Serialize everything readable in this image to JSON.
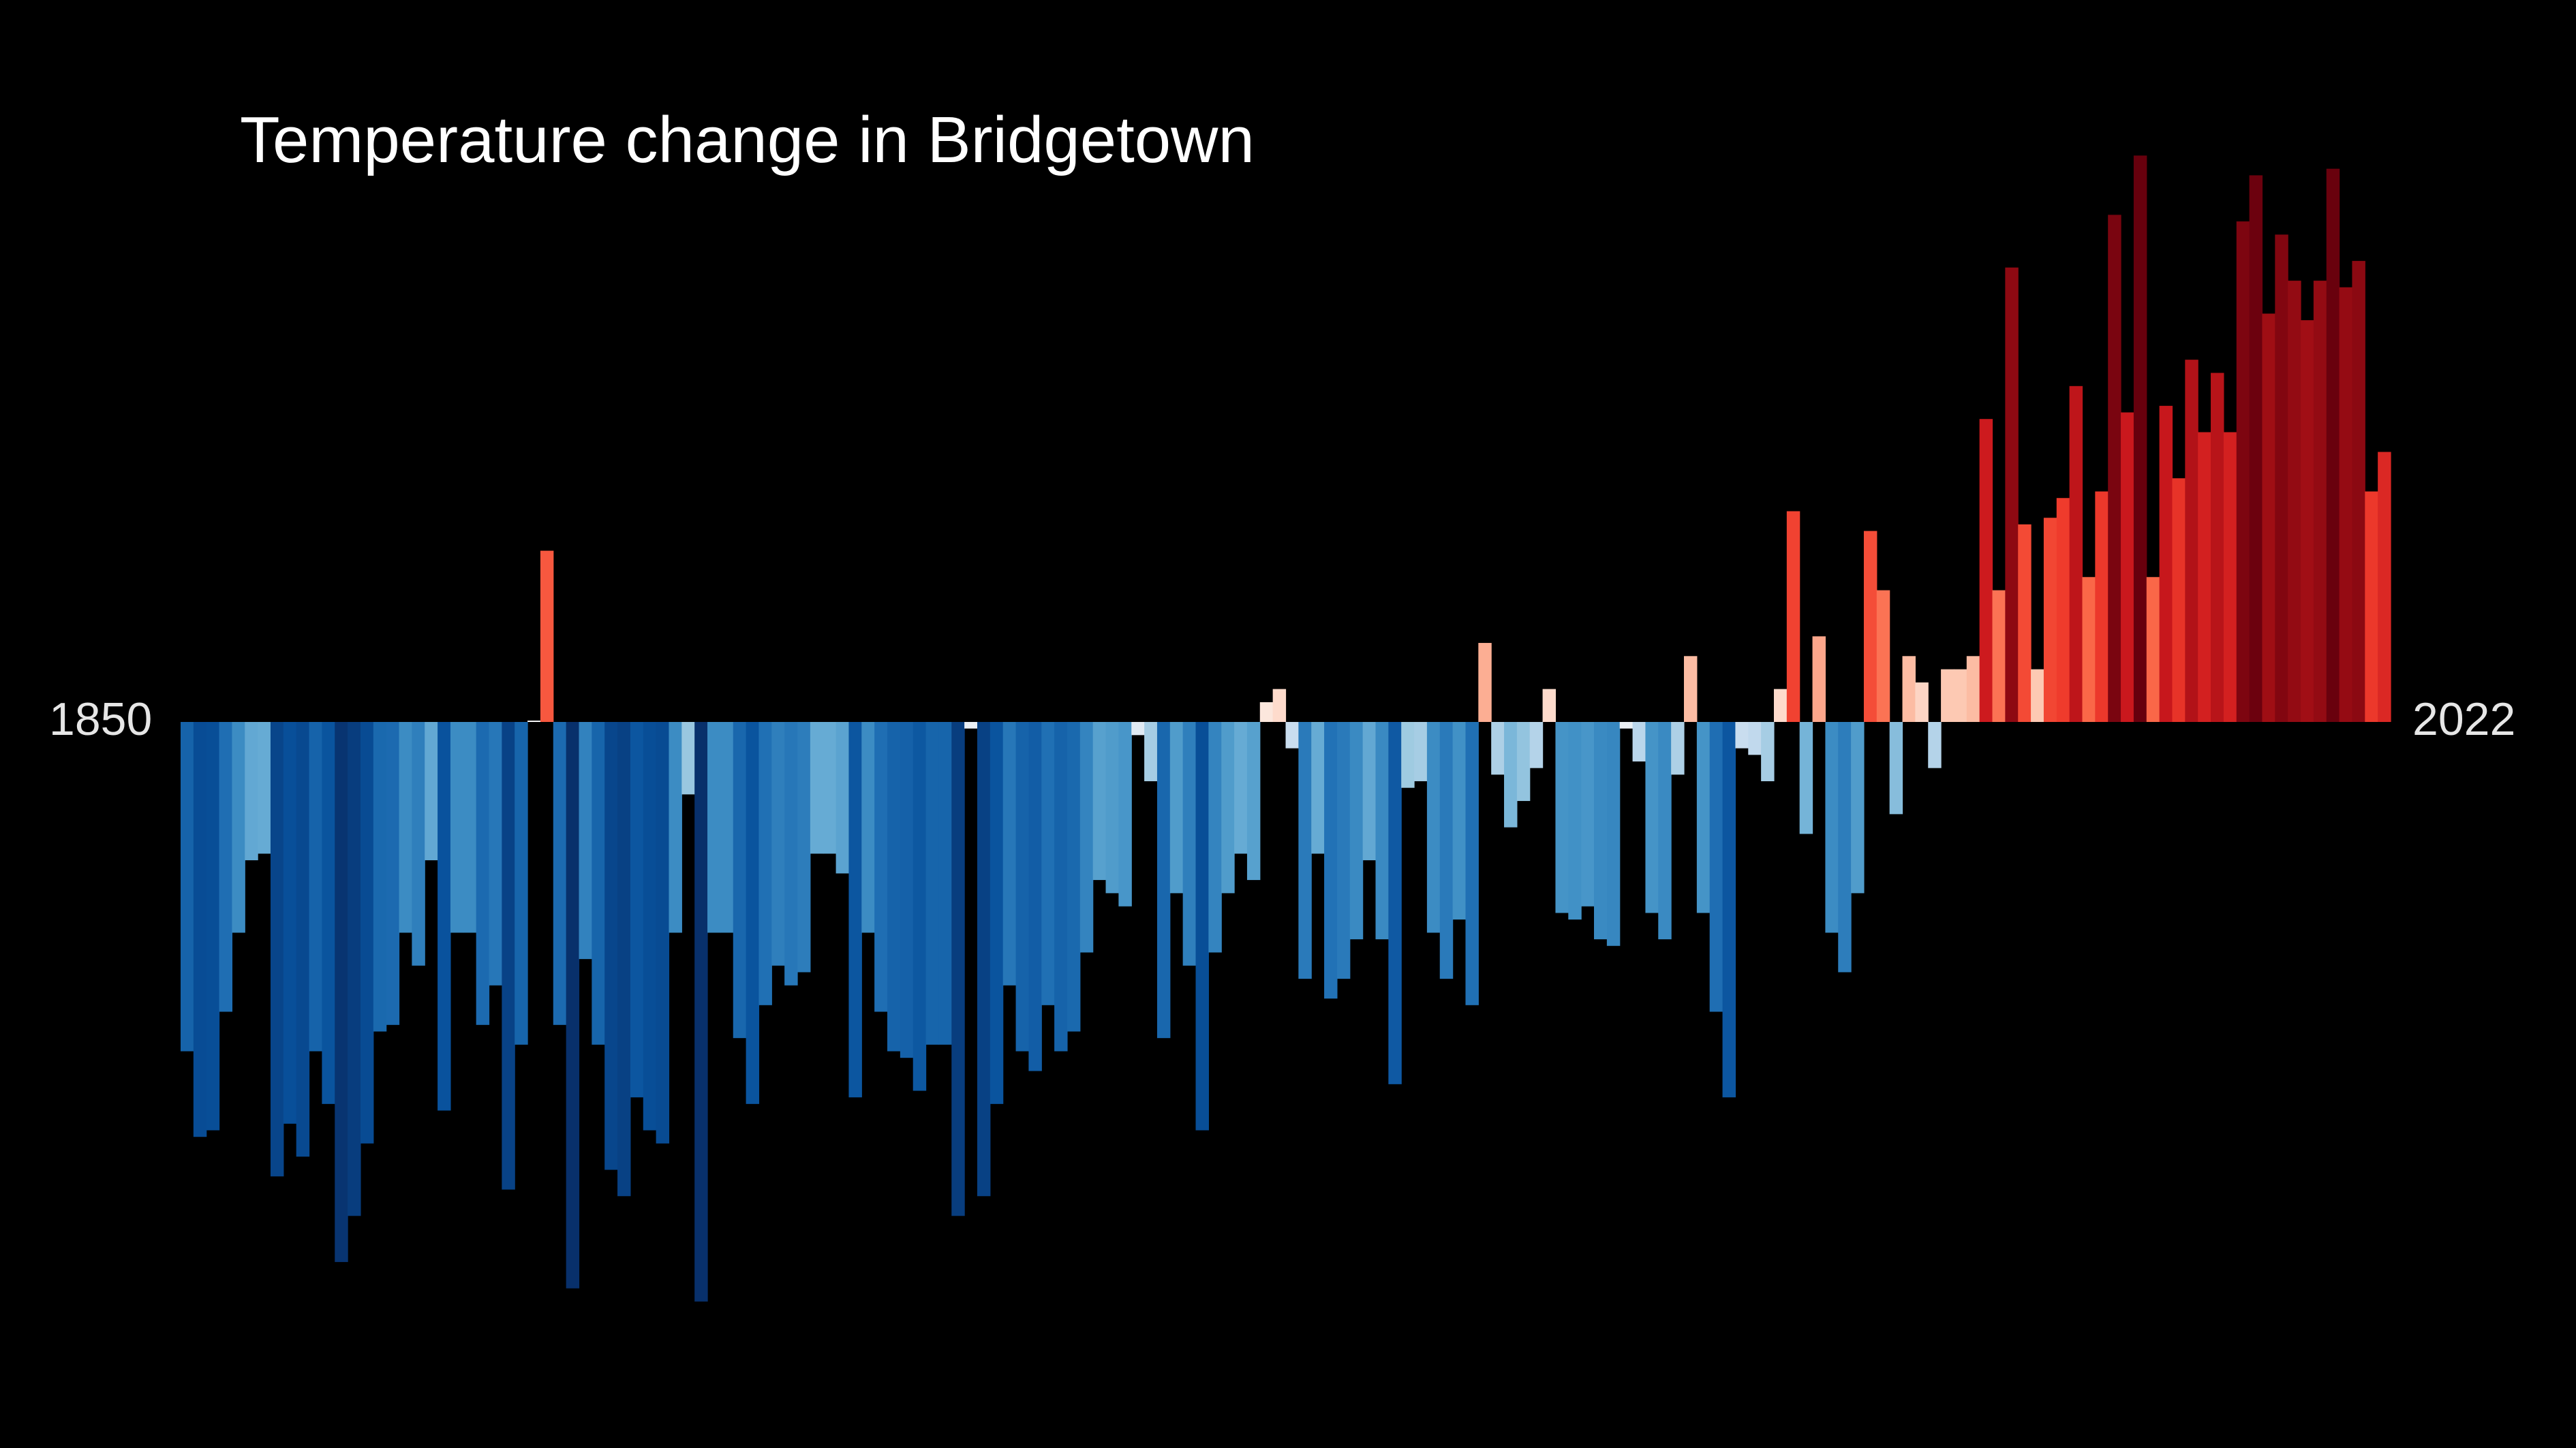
{
  "chart_data": {
    "type": "bar",
    "title": "Temperature change in Bridgetown",
    "x_start": 1850,
    "x_end": 2022,
    "start_label": "1850",
    "end_label": "2022",
    "ylim": [
      -0.87,
      0.85
    ],
    "values": [
      -0.5,
      -0.63,
      -0.62,
      -0.44,
      -0.32,
      -0.21,
      -0.2,
      -0.69,
      -0.61,
      -0.66,
      -0.5,
      -0.58,
      -0.82,
      -0.75,
      -0.64,
      -0.47,
      -0.46,
      -0.32,
      -0.37,
      -0.21,
      -0.59,
      -0.32,
      -0.32,
      -0.46,
      -0.4,
      -0.71,
      -0.49,
      0.0,
      0.26,
      -0.46,
      -0.86,
      -0.36,
      -0.49,
      -0.68,
      -0.72,
      -0.57,
      -0.62,
      -0.64,
      -0.32,
      -0.11,
      -0.88,
      -0.32,
      -0.32,
      -0.48,
      -0.58,
      -0.43,
      -0.37,
      -0.4,
      -0.38,
      -0.2,
      -0.2,
      -0.23,
      -0.57,
      -0.32,
      -0.44,
      -0.5,
      -0.51,
      -0.56,
      -0.49,
      -0.49,
      -0.75,
      -0.01,
      -0.72,
      -0.58,
      -0.4,
      -0.5,
      -0.53,
      -0.43,
      -0.5,
      -0.47,
      -0.35,
      -0.24,
      -0.26,
      -0.28,
      -0.02,
      -0.09,
      -0.48,
      -0.26,
      -0.37,
      -0.62,
      -0.35,
      -0.26,
      -0.2,
      -0.24,
      0.03,
      0.05,
      -0.04,
      -0.39,
      -0.2,
      -0.42,
      -0.39,
      -0.33,
      -0.21,
      -0.33,
      -0.55,
      -0.1,
      -0.09,
      -0.32,
      -0.39,
      -0.3,
      -0.43,
      0.12,
      -0.08,
      -0.16,
      -0.12,
      -0.07,
      0.05,
      -0.29,
      -0.3,
      -0.28,
      -0.33,
      -0.34,
      -0.01,
      -0.06,
      -0.29,
      -0.33,
      -0.08,
      0.1,
      -0.29,
      -0.44,
      -0.57,
      -0.04,
      -0.05,
      -0.09,
      0.05,
      0.32,
      -0.17,
      0.13,
      -0.32,
      -0.38,
      -0.26,
      0.29,
      0.2,
      -0.14,
      0.1,
      0.06,
      -0.07,
      0.08,
      0.08,
      0.1,
      0.46,
      0.2,
      0.69,
      0.3,
      0.08,
      0.31,
      0.34,
      0.51,
      0.22,
      0.35,
      0.77,
      0.47,
      0.86,
      0.22,
      0.48,
      0.37,
      0.55,
      0.44,
      0.53,
      0.44,
      0.76,
      0.83,
      0.62,
      0.74,
      0.67,
      0.61,
      0.67,
      0.84,
      0.66,
      0.7,
      0.35,
      0.41
    ]
  }
}
